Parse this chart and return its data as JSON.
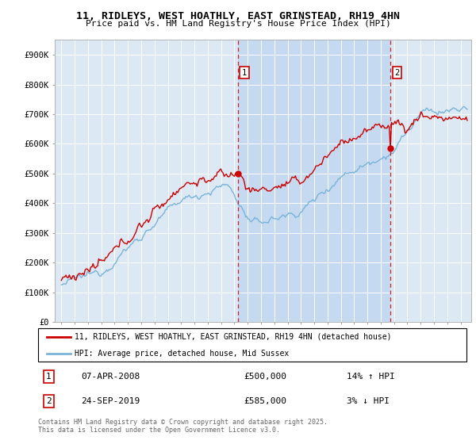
{
  "title1": "11, RIDLEYS, WEST HOATHLY, EAST GRINSTEAD, RH19 4HN",
  "title2": "Price paid vs. HM Land Registry's House Price Index (HPI)",
  "bg_color": "#dce9f5",
  "house_color": "#cc0000",
  "hpi_color": "#7ab3d9",
  "highlight_color": "#c5daf0",
  "ylim": [
    0,
    950000
  ],
  "yticks": [
    0,
    100000,
    200000,
    300000,
    400000,
    500000,
    600000,
    700000,
    800000,
    900000
  ],
  "ytick_labels": [
    "£0",
    "£100K",
    "£200K",
    "£300K",
    "£400K",
    "£500K",
    "£600K",
    "£700K",
    "£800K",
    "£900K"
  ],
  "sale1_date": 2008.27,
  "sale1_price": 500000,
  "sale1_label": "07-APR-2008",
  "sale1_pct": "14% ↑ HPI",
  "sale2_date": 2019.73,
  "sale2_price": 585000,
  "sale2_label": "24-SEP-2019",
  "sale2_pct": "3% ↓ HPI",
  "legend1": "11, RIDLEYS, WEST HOATHLY, EAST GRINSTEAD, RH19 4HN (detached house)",
  "legend2": "HPI: Average price, detached house, Mid Sussex",
  "footer": "Contains HM Land Registry data © Crown copyright and database right 2025.\nThis data is licensed under the Open Government Licence v3.0.",
  "xmin": 1994.5,
  "xmax": 2025.8
}
